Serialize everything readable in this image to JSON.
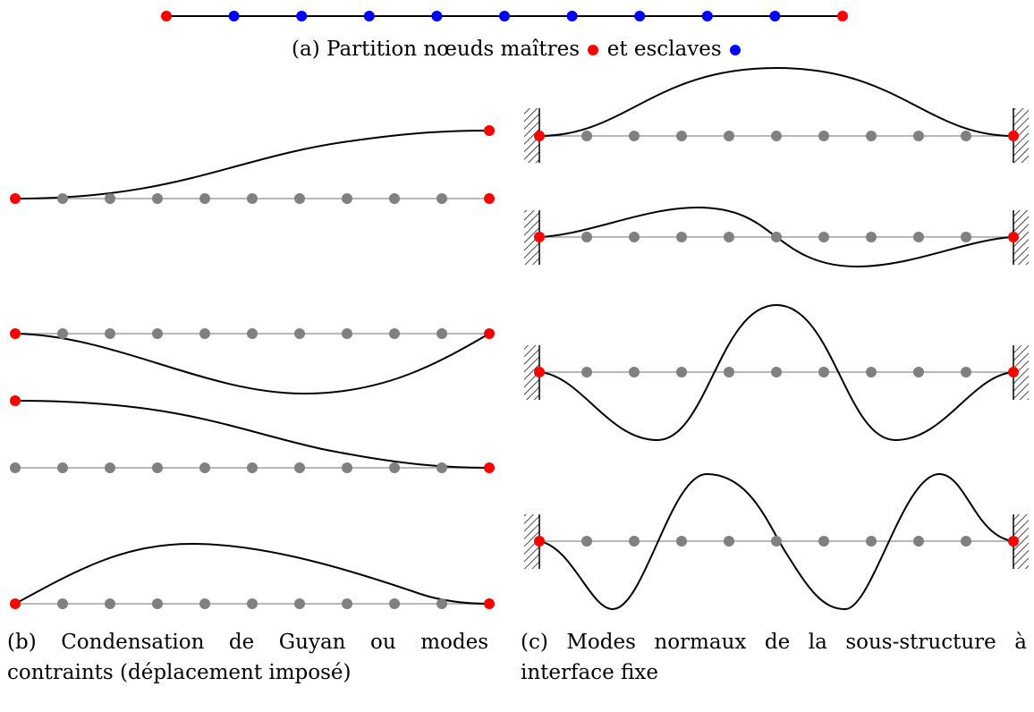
{
  "captions": {
    "a_before": "(a) Partition nœuds maîtres",
    "a_middle": "et esclaves",
    "b": "(b) Condensation de Guyan ou modes contraints (déplacement imposé)",
    "c": "(c) Modes normaux de la sous-structure à interface fixe"
  },
  "colors": {
    "master": "#ff0000",
    "slave": "#0000ff",
    "inactive_node": "#808080",
    "beam": "#a0a0a0",
    "curve": "#000000"
  },
  "icons": [
    "master-node-icon",
    "slave-node-icon",
    "clamp-hatch-icon"
  ],
  "partition": {
    "nodes": [
      "master",
      "slave",
      "slave",
      "slave",
      "slave",
      "slave",
      "slave",
      "slave",
      "slave",
      "slave",
      "master"
    ]
  },
  "constraint_modes": [
    {
      "mode": 1,
      "kind": "end-rotation"
    },
    {
      "mode": 2,
      "kind": "sag"
    },
    {
      "mode": 3,
      "kind": "left-raised"
    },
    {
      "mode": 4,
      "kind": "hump"
    }
  ],
  "normal_modes": [
    {
      "mode": 1
    },
    {
      "mode": 2
    },
    {
      "mode": 3
    },
    {
      "mode": 4
    }
  ]
}
